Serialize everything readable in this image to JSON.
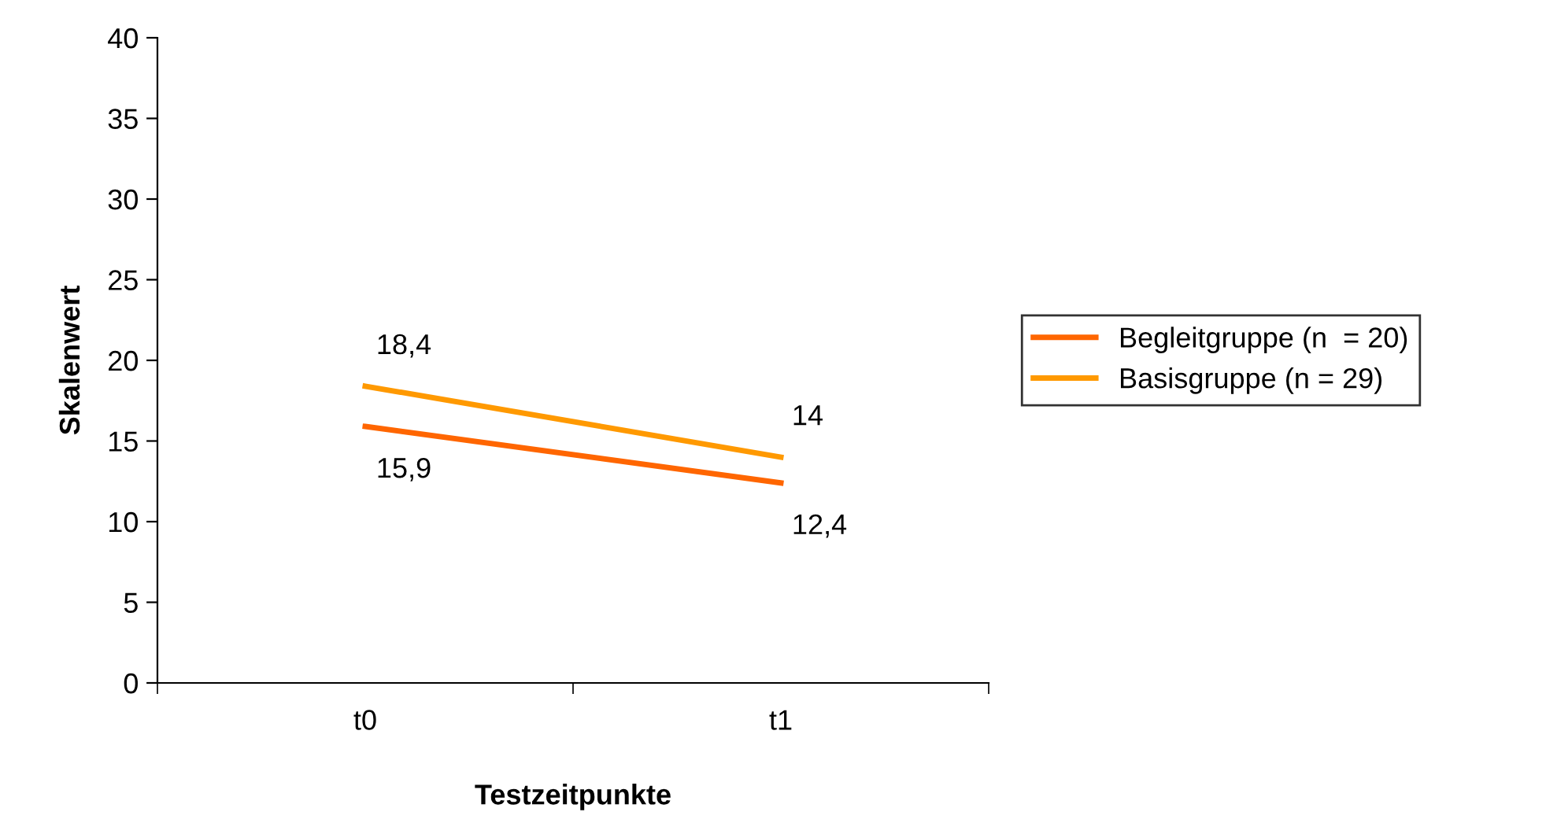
{
  "chart_data": {
    "type": "line",
    "xlabel": "Testzeitpunkte",
    "ylabel": "Skalenwert",
    "categories": [
      "t0",
      "t1"
    ],
    "series": [
      {
        "name": "Begleitgruppe (n  = 20)",
        "color": "#ff6600",
        "values": [
          15.9,
          12.4
        ],
        "value_labels": [
          "15,9",
          "12,4"
        ]
      },
      {
        "name": "Basisgruppe (n = 29)",
        "color": "#ff9900",
        "values": [
          18.4,
          14
        ],
        "value_labels": [
          "18,4",
          "14"
        ]
      }
    ],
    "ylim": [
      0,
      40
    ],
    "yticks": [
      0,
      5,
      10,
      15,
      20,
      25,
      30,
      35,
      40
    ],
    "grid": false,
    "legend": "right",
    "marker": "none",
    "line_style": "solid"
  }
}
